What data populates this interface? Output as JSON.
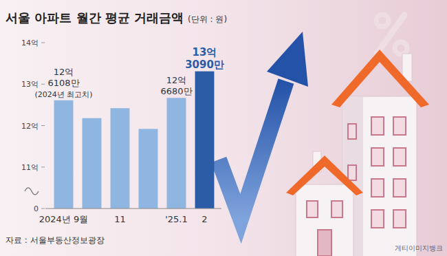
{
  "chart_data": {
    "type": "bar",
    "title": "서울 아파트 월간 평균 거래금액",
    "subtitle": "(단위 : 원)",
    "categories": [
      "2024년 9월",
      null,
      "11",
      null,
      "'25.1",
      "2"
    ],
    "values": [
      12.6108,
      12.18,
      12.42,
      11.92,
      12.668,
      13.309
    ],
    "value_labels": [
      "12억\n6108만",
      null,
      null,
      null,
      "12억\n6680만",
      "13억\n3090만"
    ],
    "colors": [
      "#8fb5e1",
      "#8fb5e1",
      "#8fb5e1",
      "#8fb5e1",
      "#8fb5e1",
      "#2b5ca5"
    ],
    "ylim": [
      0,
      14
    ],
    "yticks": [
      0,
      {
        "value": 11,
        "label": "11억"
      },
      {
        "value": 12,
        "label": "12억"
      },
      {
        "value": 13,
        "label": "13억"
      },
      {
        "value": 14,
        "label": "14억"
      }
    ],
    "grid": false,
    "data_labels": true,
    "annotations": [
      {
        "text": "(2024년 최고치)",
        "category": "2024년 9월"
      }
    ],
    "source": "자료 : 서울부동산정보광장",
    "credit": "게티이미지뱅크"
  }
}
